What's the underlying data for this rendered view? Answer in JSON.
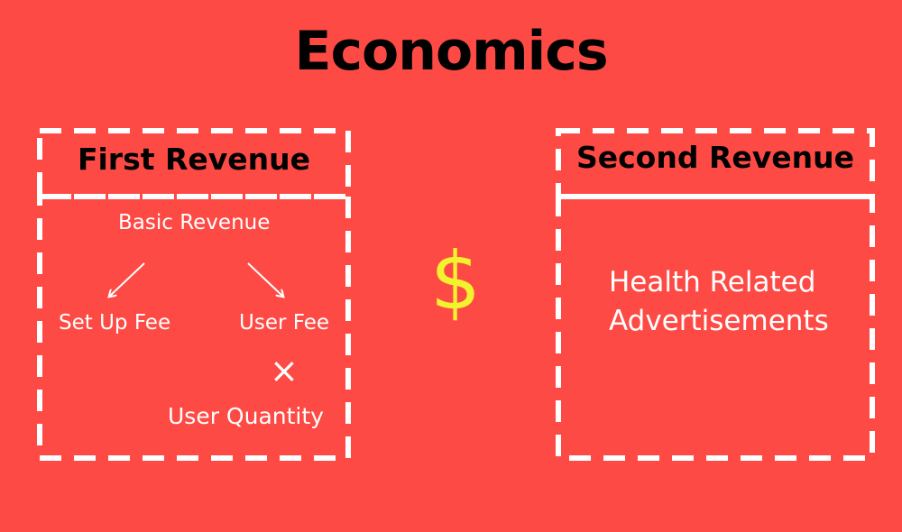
{
  "title": "Economics",
  "first": {
    "heading": "First Revenue",
    "basic": "Basic Revenue",
    "setup_fee": "Set Up Fee",
    "user_fee": "User Fee",
    "multiply": "×",
    "user_quantity": "User Quantity"
  },
  "second": {
    "heading": "Second Revenue",
    "line1": "Health Related",
    "line2": "Advertisements"
  },
  "symbol": "$",
  "colors": {
    "background": "#fe4a44",
    "dash": "#ffffff",
    "dollar": "#f3f22e",
    "heading_text": "#000000"
  }
}
